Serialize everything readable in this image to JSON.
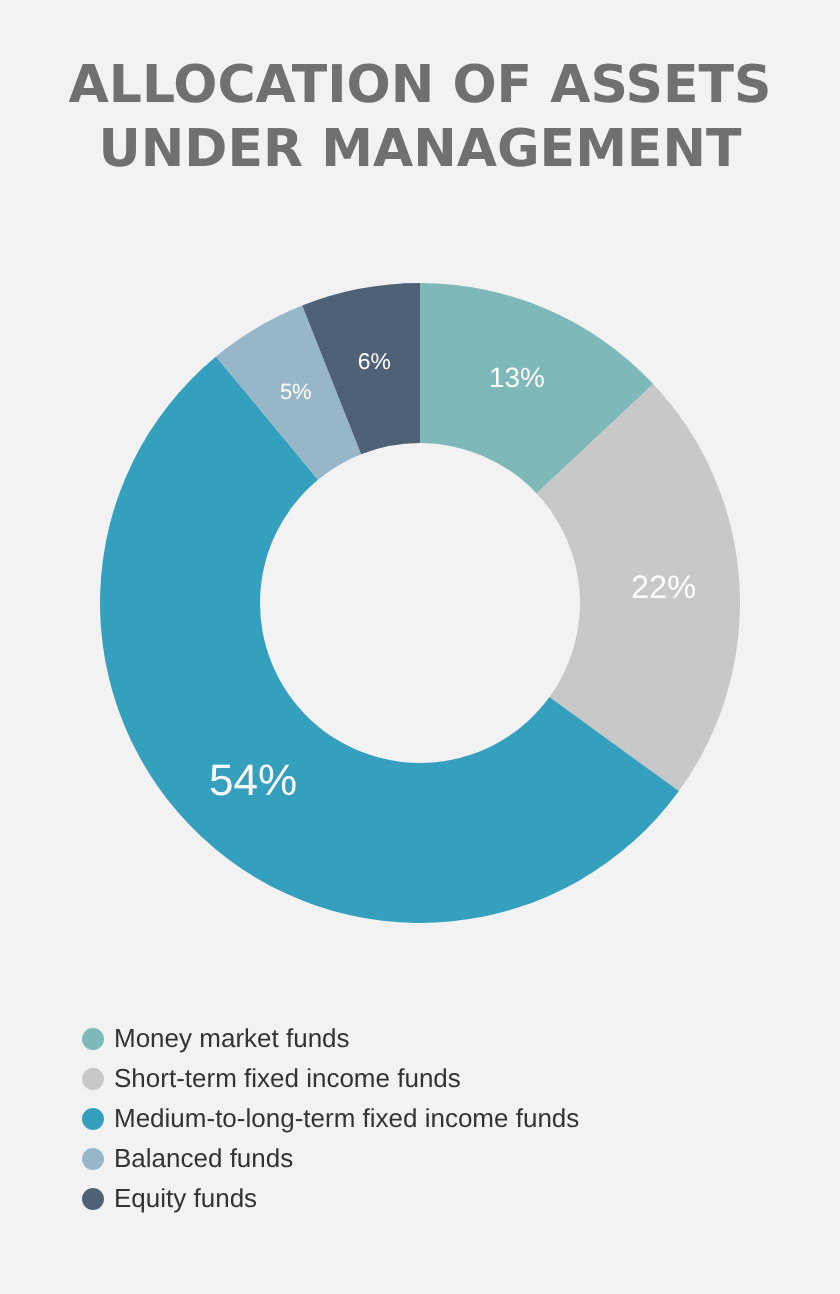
{
  "chart_data": {
    "type": "donut",
    "title": "ALLOCATION OF ASSETS UNDER MANAGEMENT",
    "categories": [
      "Money market funds",
      "Short-term fixed income funds",
      "Medium-to-long-term fixed income funds",
      "Balanced funds",
      "Equity funds"
    ],
    "values": [
      13,
      22,
      54,
      5,
      6
    ],
    "value_labels": [
      "13%",
      "22%",
      "54%",
      "5%",
      "6%"
    ],
    "colors": [
      "#7fb8b8",
      "#c8c8c8",
      "#35a0be",
      "#97b7c8",
      "#4f6175"
    ],
    "legend": "bottom"
  }
}
